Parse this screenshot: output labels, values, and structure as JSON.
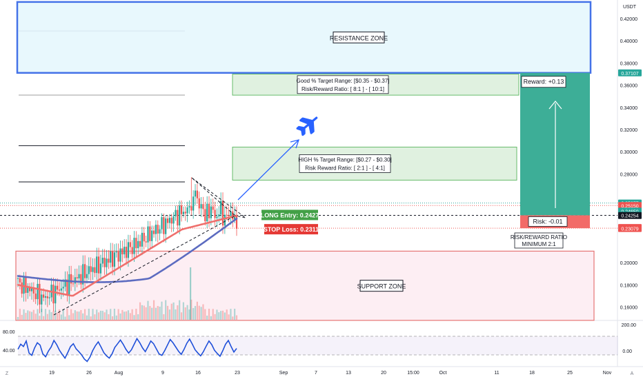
{
  "chart_data": {
    "type": "candlestick",
    "quote_currency": "USDT",
    "x_ticks": [
      "19",
      "26",
      "Aug",
      "9",
      "16",
      "23",
      "Sep",
      "7",
      "13",
      "20",
      "15:00",
      "Oct",
      "11",
      "18",
      "25",
      "Nov"
    ],
    "y_ticks": [
      "0.42000",
      "0.40000",
      "0.38000",
      "0.36000",
      "0.34000",
      "0.32000",
      "0.30000",
      "0.28000",
      "0.20000",
      "0.18000",
      "0.16000"
    ],
    "ylim": [
      0.145,
      0.43
    ],
    "price_badges": [
      {
        "label": "0.37107",
        "value": 0.37107,
        "color": "#26a69a"
      },
      {
        "label": "0.25377",
        "value": 0.25377,
        "color": "#26a69a"
      },
      {
        "label": "0.25150",
        "value": 0.2515,
        "color": "#ef5350"
      },
      {
        "label": "0.24650",
        "value": 0.2465,
        "color": "#26a69a"
      },
      {
        "label": "0.24302",
        "value": 0.24302,
        "color": "#26a69a"
      },
      {
        "label": "0.24254",
        "value": 0.24254,
        "color": "#131722"
      },
      {
        "label": "0.23175",
        "value": 0.23175,
        "color": "#ef5350"
      },
      {
        "label": "0.23079",
        "value": 0.23079,
        "color": "#ef5350"
      }
    ],
    "horizontal_levels": [
      0.3055,
      0.2728,
      0.2426,
      0.2311
    ],
    "zones": [
      {
        "name": "resistance",
        "label": "RESISTANCE ZONE",
        "ymin": 0.3711,
        "ymax": 0.435,
        "color": "#4472e8"
      },
      {
        "name": "support",
        "label": "SUPPORT ZONE",
        "ymin": 0.148,
        "ymax": 0.2104,
        "color": "#e57373"
      }
    ],
    "targets": [
      {
        "name": "good",
        "line1": "Good % Target Range:  [$0.35 - $0.37]",
        "line2": "Risk/Reward Ratio: [ 8:1 ]  - [ 10:1]",
        "ymin": 0.351,
        "ymax": 0.37
      },
      {
        "name": "high",
        "line1": "HIGH % Target Range:  [$0.27 - $0.30]",
        "line2": "Risk Reward Ratio: [ 2:1 ]  - [ 4:1]",
        "ymin": 0.2744,
        "ymax": 0.3042
      }
    ],
    "entry": {
      "label": "LONG Entry: 0.2427",
      "value": 0.2427
    },
    "stop": {
      "label": "STOP Loss: 0.2311",
      "value": 0.2311
    },
    "position": {
      "entry": 0.2427,
      "target": 0.3711,
      "stop": 0.2311,
      "reward_label": "Reward: +0.13",
      "risk_label": "Risk: -0.01"
    },
    "rr_note": {
      "line1": "RISK/REWARD RATIO",
      "line2": "MINIMUM 2:1"
    },
    "rsi": {
      "y_ticks_left": [
        "80.00",
        "40.00"
      ],
      "y_ticks_right": [
        "200.00",
        "0.00"
      ],
      "values": [
        52,
        63,
        58,
        70,
        44,
        39,
        55,
        66,
        61,
        42,
        36,
        48,
        57,
        71,
        62,
        50,
        41,
        33,
        45,
        58,
        64,
        53,
        47,
        40,
        31,
        26,
        35,
        49,
        60,
        68,
        57,
        45,
        38,
        33,
        42,
        56,
        64,
        72,
        63,
        52,
        44,
        51,
        63,
        75,
        66,
        55,
        47,
        58,
        70,
        64,
        53,
        42,
        39,
        49,
        61,
        73,
        66,
        57,
        48,
        41,
        52,
        65,
        74,
        63,
        51,
        44,
        38,
        47,
        59,
        70,
        62,
        50,
        43,
        37,
        49,
        63,
        71,
        58,
        46,
        54
      ]
    },
    "footer": {
      "z": "Z",
      "a": "A"
    }
  }
}
